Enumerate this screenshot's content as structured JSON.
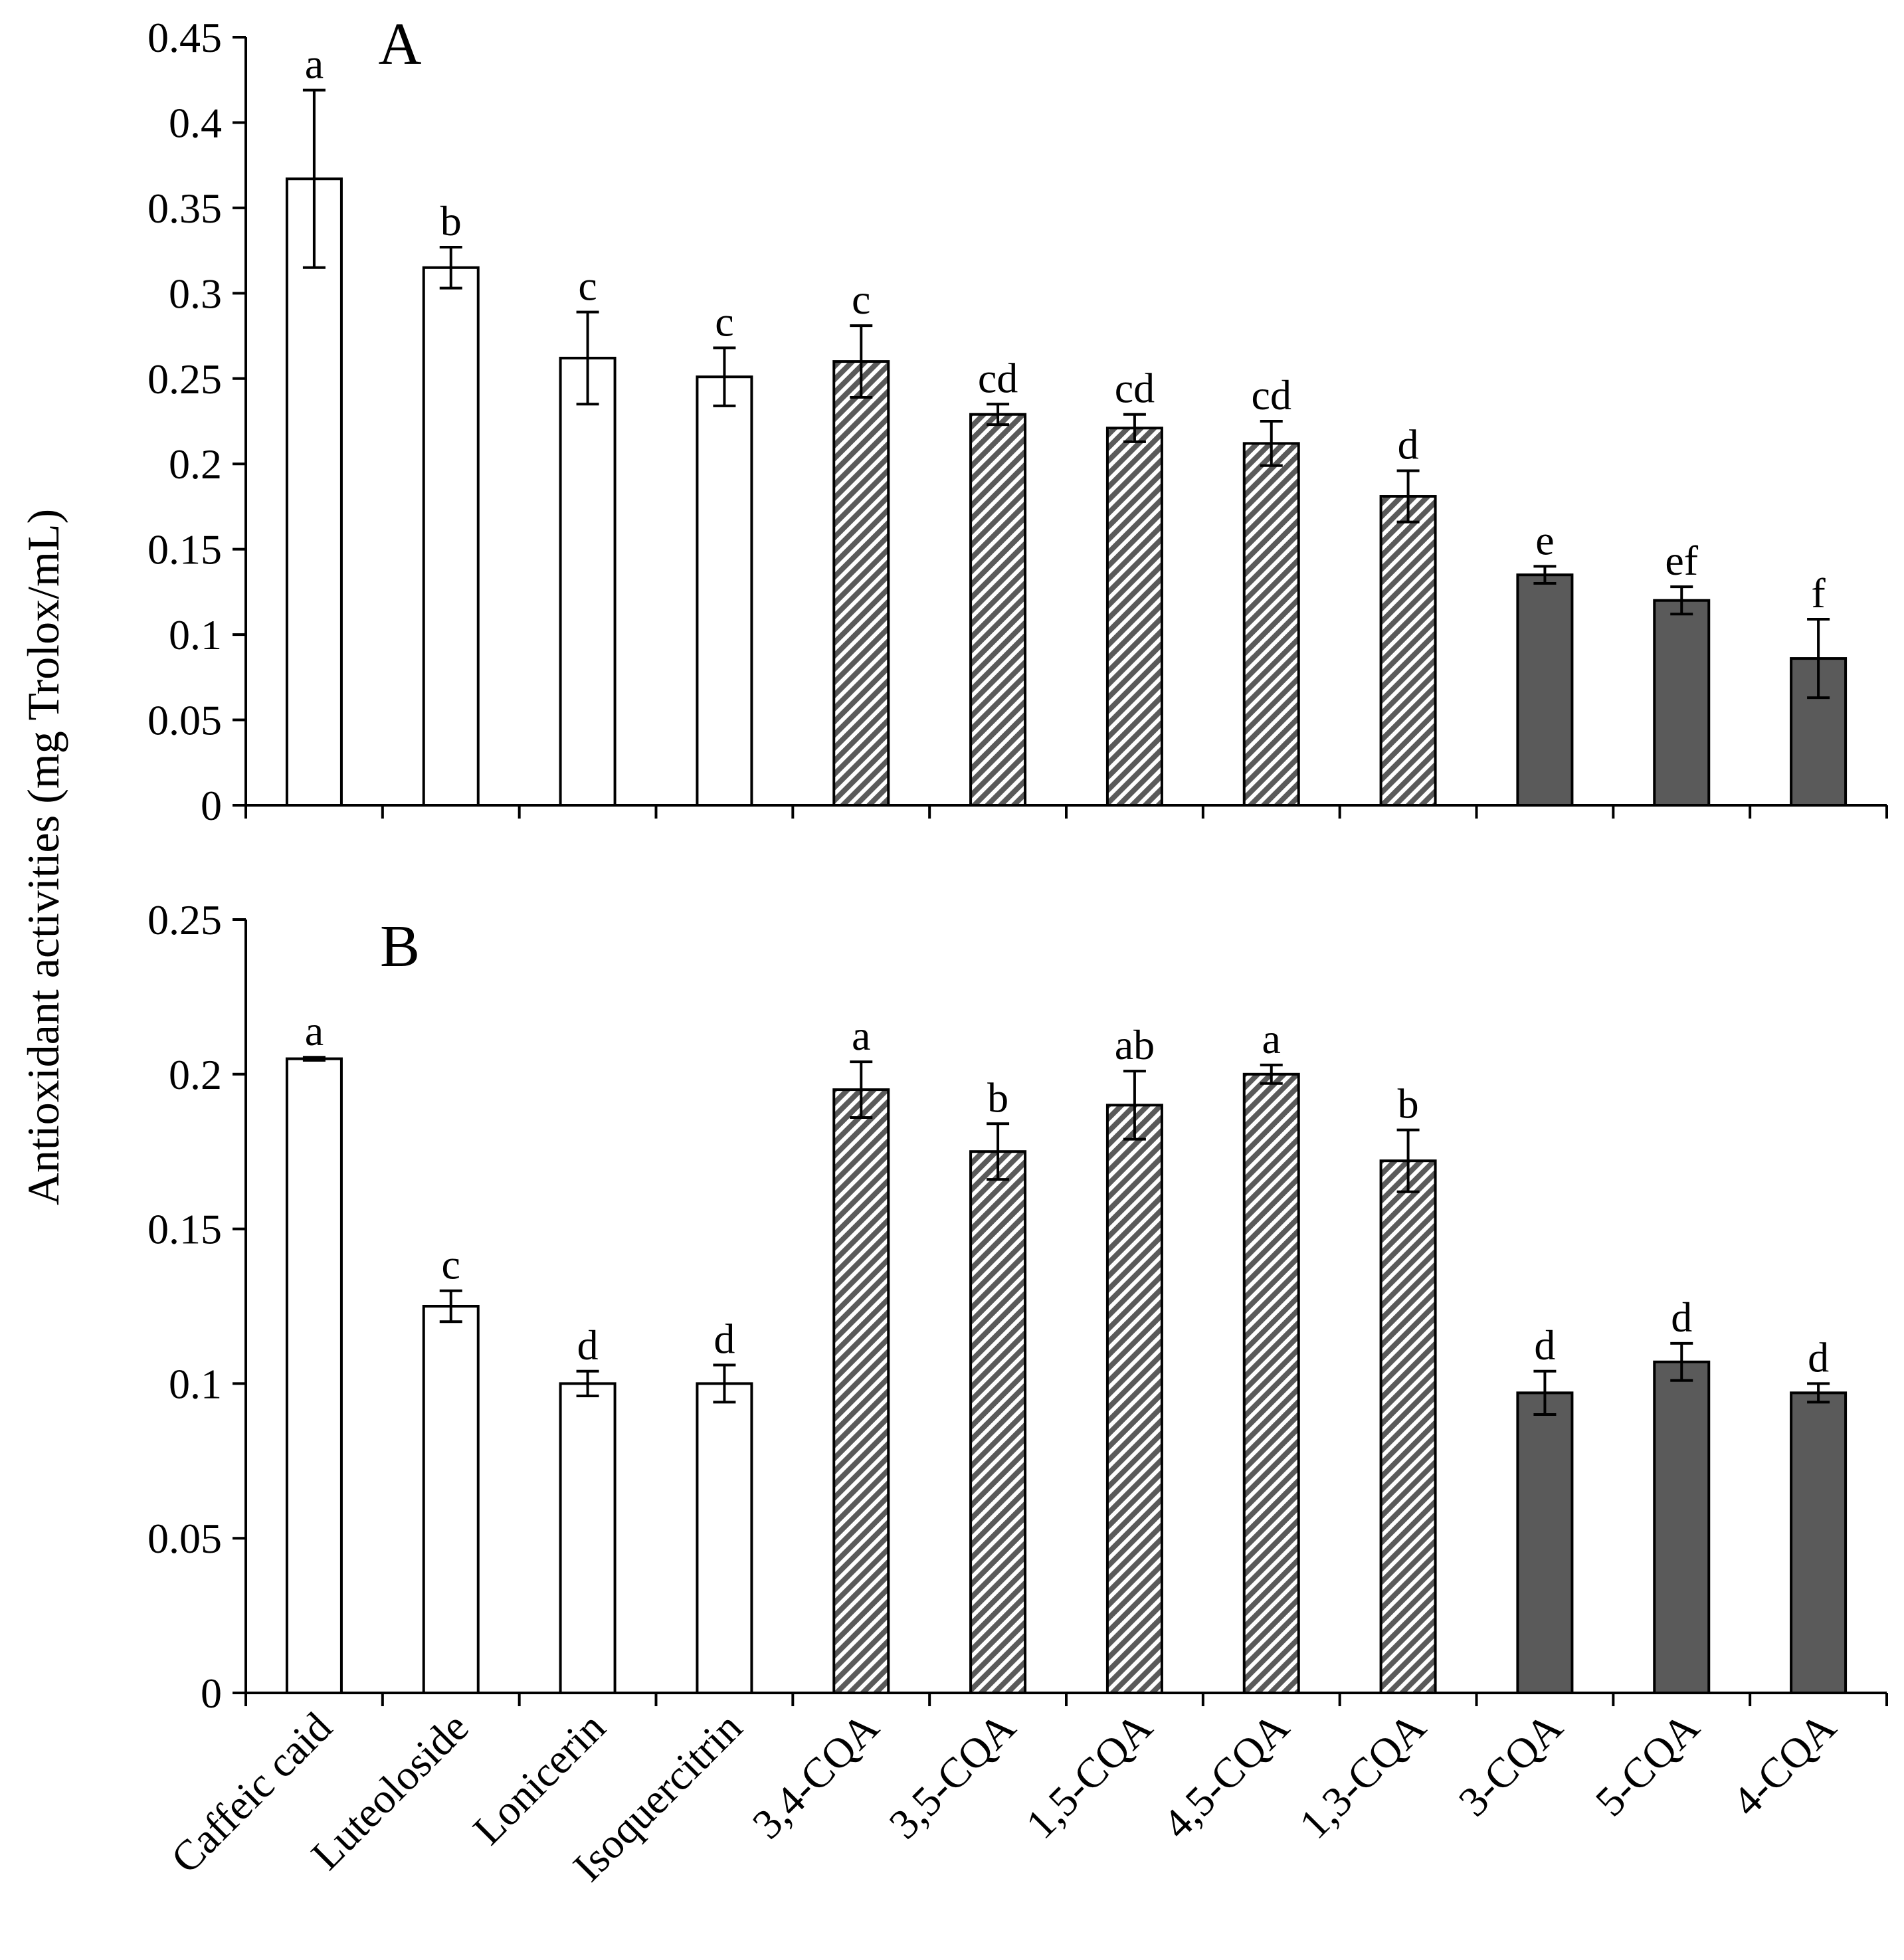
{
  "y_axis_label": "Antioxidant activities (mg Trolox/mL)",
  "categories": [
    "Caffeic caid",
    "Luteoloside",
    "Lonicerin",
    "Isoquercitrin",
    "3,4-CQA",
    "3,5-CQA",
    "1,5-CQA",
    "4,5-CQA",
    "1,3-CQA",
    "3-CQA",
    "5-CQA",
    "4-CQA"
  ],
  "groups": [
    "white",
    "white",
    "white",
    "white",
    "hatched",
    "hatched",
    "hatched",
    "hatched",
    "hatched",
    "dark",
    "dark",
    "dark"
  ],
  "colors": {
    "white": "#ffffff",
    "dark": "#5a5a5a",
    "hatch": "#5a5a5a",
    "axis": "#000000"
  },
  "chart_data": [
    {
      "type": "bar",
      "panel": "A",
      "categories": [
        "Caffeic caid",
        "Luteoloside",
        "Lonicerin",
        "Isoquercitrin",
        "3,4-CQA",
        "3,5-CQA",
        "1,5-CQA",
        "4,5-CQA",
        "1,3-CQA",
        "3-CQA",
        "5-CQA",
        "4-CQA"
      ],
      "values": [
        0.367,
        0.315,
        0.262,
        0.251,
        0.26,
        0.229,
        0.221,
        0.212,
        0.181,
        0.135,
        0.12,
        0.086
      ],
      "errors": [
        0.052,
        0.012,
        0.027,
        0.017,
        0.021,
        0.006,
        0.008,
        0.013,
        0.015,
        0.005,
        0.008,
        0.023
      ],
      "letters": [
        "a",
        "b",
        "c",
        "c",
        "c",
        "cd",
        "cd",
        "cd",
        "d",
        "e",
        "ef",
        "f"
      ],
      "ylim": [
        0,
        0.45
      ],
      "yticks": [
        0,
        0.05,
        0.1,
        0.15,
        0.2,
        0.25,
        0.3,
        0.35,
        0.4,
        0.45
      ],
      "ytick_labels": [
        "0",
        "0.05",
        "0.1",
        "0.15",
        "0.2",
        "0.25",
        "0.3",
        "0.35",
        "0.4",
        "0.45"
      ],
      "ylabel": "Antioxidant activities (mg Trolox/mL)"
    },
    {
      "type": "bar",
      "panel": "B",
      "categories": [
        "Caffeic caid",
        "Luteoloside",
        "Lonicerin",
        "Isoquercitrin",
        "3,4-CQA",
        "3,5-CQA",
        "1,5-CQA",
        "4,5-CQA",
        "1,3-CQA",
        "3-CQA",
        "5-CQA",
        "4-CQA"
      ],
      "values": [
        0.205,
        0.125,
        0.1,
        0.1,
        0.195,
        0.175,
        0.19,
        0.2,
        0.172,
        0.097,
        0.107,
        0.097
      ],
      "errors": [
        0.0005,
        0.005,
        0.004,
        0.006,
        0.009,
        0.009,
        0.011,
        0.003,
        0.01,
        0.007,
        0.006,
        0.003
      ],
      "letters": [
        "a",
        "c",
        "d",
        "d",
        "a",
        "b",
        "ab",
        "a",
        "b",
        "d",
        "d",
        "d"
      ],
      "ylim": [
        0,
        0.25
      ],
      "yticks": [
        0,
        0.05,
        0.1,
        0.15,
        0.2,
        0.25
      ],
      "ytick_labels": [
        "0",
        "0.05",
        "0.1",
        "0.15",
        "0.2",
        "0.25"
      ],
      "ylabel": "Antioxidant activities (mg Trolox/mL)"
    }
  ]
}
